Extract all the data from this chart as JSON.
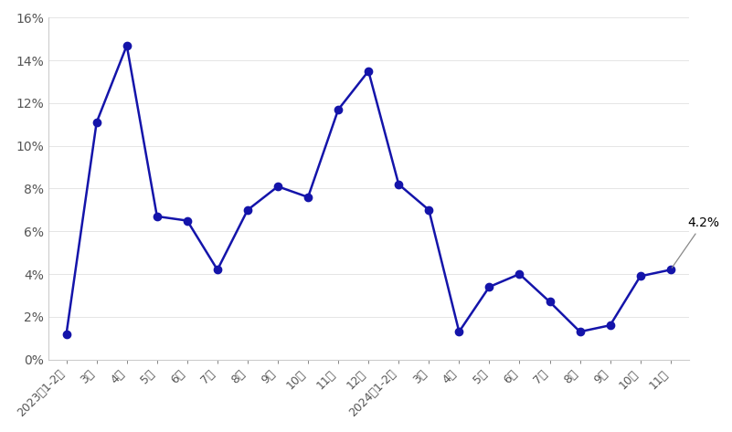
{
  "labels": [
    "2023年1-2月",
    "3月",
    "4月",
    "5月",
    "6月",
    "7月",
    "8月",
    "9月",
    "10月",
    "11月",
    "12月",
    "2024年1-2月",
    "3月",
    "4月",
    "5月",
    "6月",
    "7月",
    "8月",
    "9月",
    "10月",
    "11月"
  ],
  "values": [
    1.2,
    11.1,
    14.7,
    6.7,
    6.5,
    4.2,
    7.0,
    8.1,
    7.6,
    11.7,
    13.5,
    8.2,
    7.0,
    1.3,
    3.4,
    4.0,
    2.7,
    1.3,
    1.6,
    3.9,
    4.2
  ],
  "line_color": "#1414aa",
  "marker_color": "#1414aa",
  "marker_size": 6,
  "line_width": 1.8,
  "annotation_text": "4.2%",
  "annotation_index": 20,
  "ylim": [
    0,
    16
  ],
  "yticks": [
    0,
    2,
    4,
    6,
    8,
    10,
    12,
    14,
    16
  ],
  "background_color": "#ffffff",
  "spine_color": "#cccccc",
  "gridline_color": "#e0e0e0",
  "tick_label_color": "#555555",
  "label_fontsize": 9,
  "ytick_fontsize": 10
}
